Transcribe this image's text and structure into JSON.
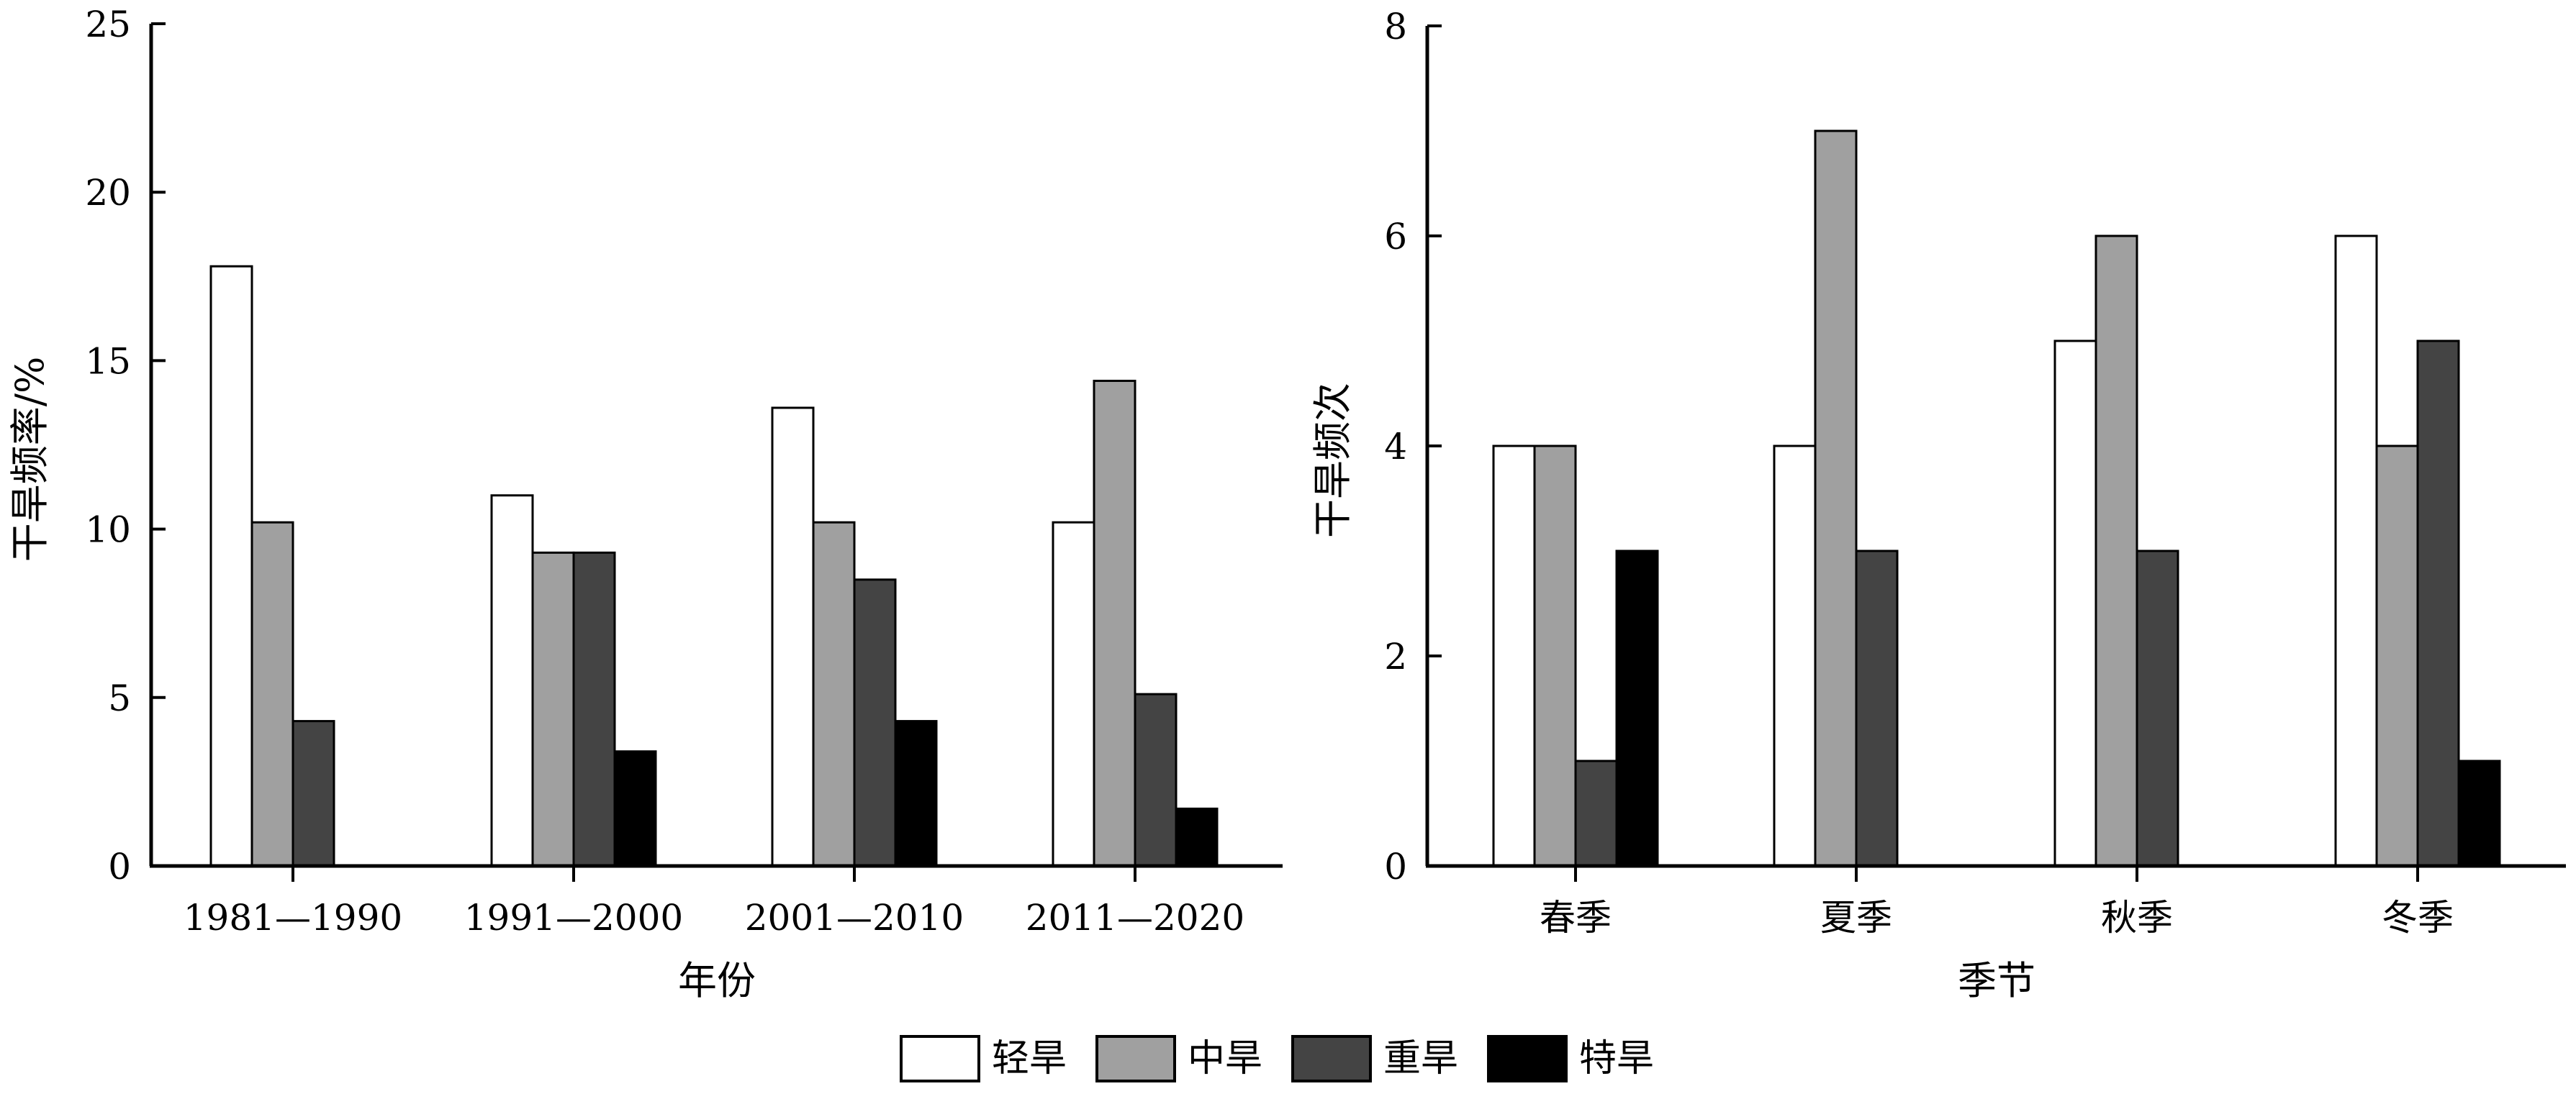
{
  "legend": [
    {
      "label": "轻旱",
      "color": "#ffffff"
    },
    {
      "label": "中旱",
      "color": "#a0a0a0"
    },
    {
      "label": "重旱",
      "color": "#444444"
    },
    {
      "label": "特旱",
      "color": "#000000"
    }
  ],
  "chart_data": [
    {
      "type": "bar",
      "title": "",
      "xlabel": "年份",
      "ylabel": "干旱频率/%",
      "ylim": [
        0,
        25
      ],
      "yticks": [
        "0",
        "5",
        "10",
        "15",
        "20",
        "25"
      ],
      "categories": [
        "1981—1990",
        "1991—2000",
        "2001—2010",
        "2011—2020"
      ],
      "series": [
        {
          "name": "轻旱",
          "values": [
            17.8,
            11.0,
            13.6,
            10.2
          ]
        },
        {
          "name": "中旱",
          "values": [
            10.2,
            9.3,
            10.2,
            14.4
          ]
        },
        {
          "name": "重旱",
          "values": [
            4.3,
            9.3,
            8.5,
            5.1
          ]
        },
        {
          "name": "特旱",
          "values": [
            0,
            3.4,
            4.3,
            1.7
          ]
        }
      ],
      "grid": false,
      "legend_position": "bottom-center"
    },
    {
      "type": "bar",
      "title": "",
      "xlabel": "季节",
      "ylabel": "干旱频次",
      "ylim": [
        0,
        8
      ],
      "yticks": [
        "0",
        "2",
        "4",
        "6",
        "8"
      ],
      "categories": [
        "春季",
        "夏季",
        "秋季",
        "冬季"
      ],
      "series": [
        {
          "name": "轻旱",
          "values": [
            4,
            4,
            5,
            6
          ]
        },
        {
          "name": "中旱",
          "values": [
            4,
            7,
            6,
            4
          ]
        },
        {
          "name": "重旱",
          "values": [
            1,
            3,
            3,
            5
          ]
        },
        {
          "name": "特旱",
          "values": [
            3,
            0,
            0,
            1
          ]
        }
      ],
      "grid": false,
      "legend_position": "bottom-center"
    }
  ]
}
